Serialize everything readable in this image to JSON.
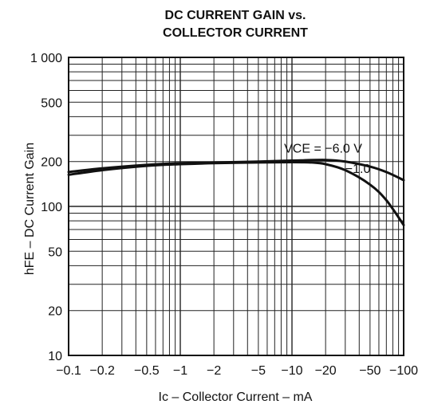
{
  "chart_data": {
    "type": "line",
    "title_lines": [
      "DC CURRENT GAIN vs.",
      "COLLECTOR CURRENT"
    ],
    "xlabel": "Ic – Collector Current – mA",
    "ylabel": "hFE – DC Current Gain",
    "x_scale": "log",
    "y_scale": "log",
    "xlim": [
      -0.1,
      -100
    ],
    "ylim": [
      10,
      1000
    ],
    "grid": true,
    "x_ticks": [
      {
        "value": -0.1,
        "label": "−0.1"
      },
      {
        "value": -0.2,
        "label": "−0.2"
      },
      {
        "value": -0.5,
        "label": "−0.5"
      },
      {
        "value": -1,
        "label": "−1"
      },
      {
        "value": -2,
        "label": "−2"
      },
      {
        "value": -5,
        "label": "−5"
      },
      {
        "value": -10,
        "label": "−10"
      },
      {
        "value": -20,
        "label": "−20"
      },
      {
        "value": -50,
        "label": "−50"
      },
      {
        "value": -100,
        "label": "−100"
      }
    ],
    "y_ticks": [
      {
        "value": 10,
        "label": "10"
      },
      {
        "value": 20,
        "label": "20"
      },
      {
        "value": 50,
        "label": "50"
      },
      {
        "value": 100,
        "label": "100"
      },
      {
        "value": 200,
        "label": "200"
      },
      {
        "value": 500,
        "label": "500"
      },
      {
        "value": 1000,
        "label": "1 000"
      }
    ],
    "series": [
      {
        "label": "VCE = −6.0 V",
        "x": [
          -0.1,
          -0.2,
          -0.5,
          -1,
          -2,
          -5,
          -10,
          -20,
          -30,
          -50,
          -70,
          -100
        ],
        "y": [
          170,
          180,
          190,
          195,
          197,
          200,
          203,
          205,
          200,
          185,
          170,
          150
        ]
      },
      {
        "label": "−1.0",
        "x": [
          -0.1,
          -0.2,
          -0.5,
          -1,
          -2,
          -5,
          -10,
          -15,
          -20,
          -30,
          -50,
          -70,
          -100
        ],
        "y": [
          163,
          175,
          187,
          192,
          195,
          197,
          198,
          197,
          192,
          175,
          140,
          110,
          75
        ]
      }
    ]
  }
}
